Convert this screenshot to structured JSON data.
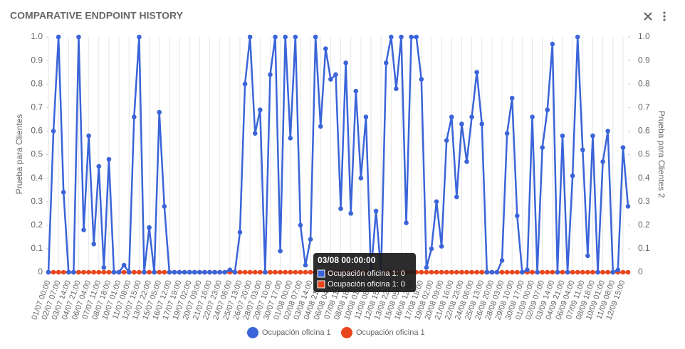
{
  "chart_data": {
    "type": "line",
    "title": "COMPARATIVE ENDPOINT HISTORY",
    "y_label": "Prueba para Clientes",
    "y2_label": "Prueba para Clientes 2",
    "categories": [
      "01/07 00:00",
      null,
      "02/07 07:00",
      null,
      "03/07 14:00",
      null,
      "04/07 21:00",
      null,
      "06/07 04:00",
      null,
      "07/07 11:00",
      null,
      "08/07 18:00",
      null,
      "10/07 01:00",
      null,
      "11/07 08:00",
      null,
      "12/07 15:00",
      null,
      "13/07 22:00",
      null,
      "15/07 05:00",
      null,
      "16/07 12:00",
      null,
      "17/07 19:00",
      null,
      "19/07 02:00",
      null,
      "20/07 09:00",
      null,
      "21/07 16:00",
      null,
      "22/07 23:00",
      null,
      "24/07 06:00",
      null,
      "25/07 13:00",
      null,
      "26/07 20:00",
      null,
      "28/07 03:00",
      null,
      "29/07 10:00",
      null,
      "30/07 17:00",
      null,
      "01/08 00:00",
      null,
      "02/08 07:00",
      null,
      "03/08 14:00",
      null,
      "04/08 21:00",
      null,
      "06/08 04:00",
      null,
      "07/08 11:00",
      null,
      "08/08 18:00",
      null,
      "10/08 01:00",
      null,
      "11/08 08:00",
      null,
      "12/08 15:00",
      null,
      "13/08 22:00",
      null,
      "15/08 05:00",
      null,
      "16/08 12:00",
      null,
      "17/08 19:00",
      null,
      "19/08 02:00",
      null,
      "20/08 09:00",
      null,
      "21/08 16:00",
      null,
      "22/08 23:00",
      null,
      "24/08 06:00",
      null,
      "25/08 13:00",
      null,
      "26/08 20:00",
      null,
      "28/08 03:00",
      null,
      "29/08 10:00",
      null,
      "30/08 17:00",
      null,
      "01/09 00:00",
      null,
      "02/09 07:00",
      null,
      "03/09 14:00",
      null,
      "04/09 21:00",
      null,
      "06/09 04:00",
      null,
      "07/09 11:00",
      null,
      "08/09 18:00",
      null,
      "10/09 01:00",
      null,
      "11/09 08:00",
      null,
      "12/09 15:00",
      null
    ],
    "series": [
      {
        "name": "Ocupación oficina 1",
        "color": "#e8461e",
        "axis": "y2",
        "values": [
          0,
          0,
          0,
          0,
          0,
          0,
          0,
          0,
          0,
          0,
          0,
          0,
          0,
          0,
          0,
          0,
          0,
          0,
          0,
          0,
          0,
          0,
          0,
          0,
          0,
          0,
          0,
          0,
          0,
          0,
          0,
          0,
          0,
          0,
          0,
          0,
          0,
          0,
          0,
          0,
          0,
          0,
          0,
          0,
          0,
          0,
          0,
          0,
          0,
          0,
          0,
          0,
          0,
          0,
          0,
          0,
          0,
          0,
          0,
          0,
          0,
          0,
          0,
          0,
          0,
          0,
          0,
          0,
          0,
          0,
          0,
          0,
          0,
          0,
          0,
          0,
          0,
          0,
          0,
          0,
          0,
          0,
          0,
          0,
          0,
          0,
          0,
          0,
          0,
          0,
          0,
          0,
          0,
          0,
          0,
          0,
          0,
          0,
          0,
          0,
          0,
          0,
          0,
          0,
          0,
          0,
          0,
          0,
          0,
          0,
          0,
          0,
          0,
          0,
          0,
          0
        ]
      },
      {
        "name": "Ocupación oficina 1",
        "color": "#3a64d8",
        "values": [
          0,
          0.6,
          1,
          0.34,
          0,
          0,
          1,
          0.18,
          0.58,
          0.12,
          0.45,
          0.02,
          0.48,
          0,
          0,
          0.03,
          0,
          0.66,
          1,
          0,
          0.19,
          0,
          0.68,
          0.28,
          0,
          0,
          0,
          0,
          0,
          0,
          0,
          0,
          0,
          0,
          0,
          0,
          0.01,
          0,
          0.17,
          0.8,
          1,
          0.59,
          0.69,
          0,
          0.84,
          1,
          0.09,
          1,
          0.57,
          1,
          0.2,
          0.03,
          0.14,
          1,
          0.62,
          0.95,
          0.82,
          0.84,
          0.27,
          0.89,
          0.25,
          0.77,
          0.4,
          0.66,
          0,
          0.26,
          0,
          0.89,
          1,
          0.78,
          1,
          0.21,
          1,
          1,
          0.82,
          0.02,
          0.1,
          0.3,
          0.11,
          0.56,
          0.66,
          0.32,
          0.63,
          0.47,
          0.66,
          0.85,
          0.63,
          0,
          0,
          0,
          0.05,
          0.59,
          0.74,
          0.24,
          0,
          0.01,
          0.66,
          0,
          0.53,
          0.69,
          0.97,
          0,
          0.58,
          0,
          0.41,
          1,
          0.52,
          0.07,
          0.58,
          0,
          0.47,
          0.6,
          0,
          0.01,
          0.53,
          0.28
        ]
      }
    ],
    "ylim": [
      0,
      1
    ],
    "yticks": [
      0,
      0.1,
      0.2,
      0.3,
      0.4,
      0.5,
      0.6,
      0.7,
      0.8,
      0.9,
      {
        "value": 1,
        "label": "1.0"
      }
    ],
    "y2lim": [
      0,
      1
    ],
    "y2ticks": [
      0,
      0.1,
      0.2,
      0.3,
      0.4,
      0.5,
      0.6,
      0.7,
      0.8,
      0.9,
      {
        "value": 1,
        "label": "1.0"
      }
    ],
    "grid": true,
    "tooltip": {
      "title": "03/08 00:00:00",
      "items": [
        "Ocupación oficina 1: 0",
        "Ocupación oficina 1: 0"
      ]
    }
  }
}
